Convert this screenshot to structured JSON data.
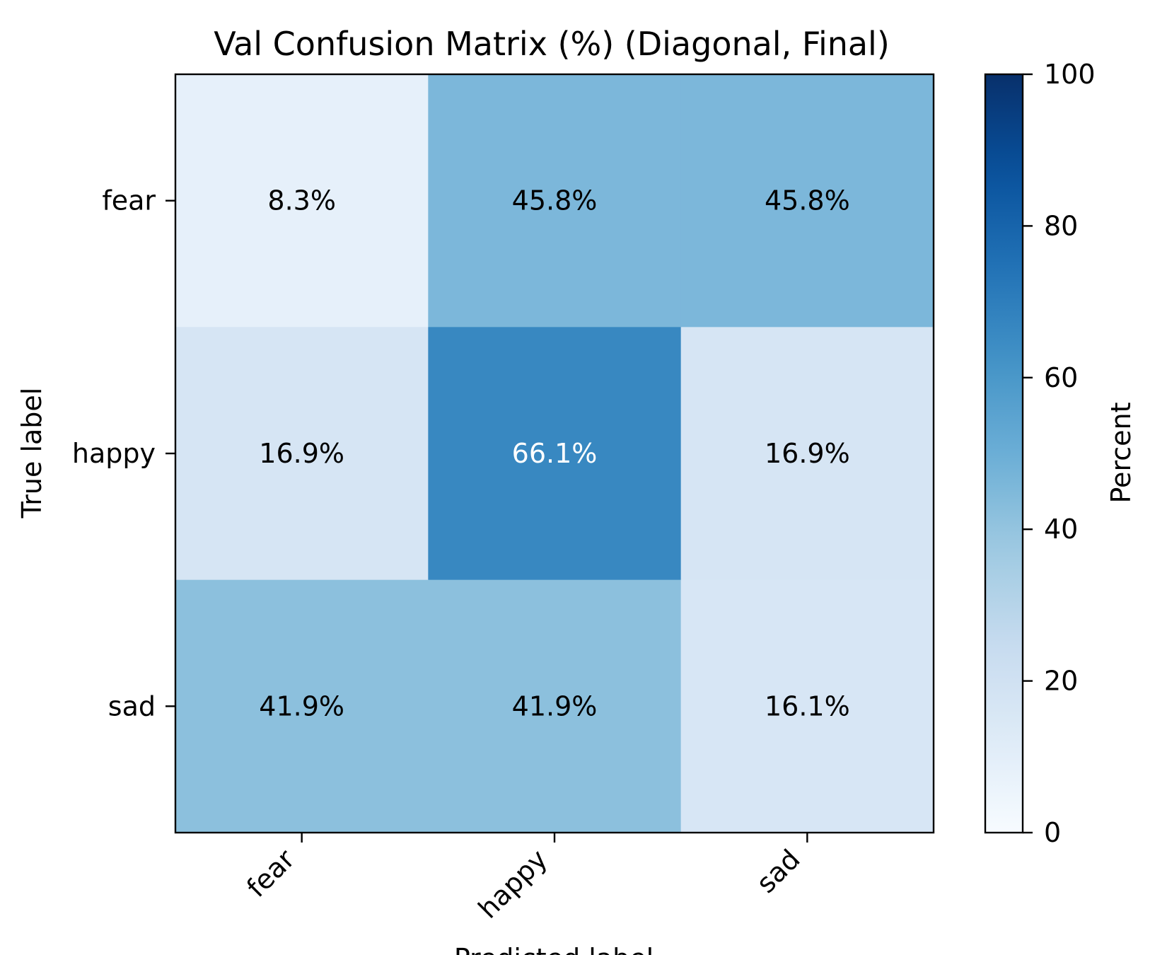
{
  "chart_data": {
    "type": "heatmap",
    "title": "Val Confusion Matrix (%) (Diagonal, Final)",
    "xlabel": "Predicted label",
    "ylabel": "True label",
    "x_categories": [
      "fear",
      "happy",
      "sad"
    ],
    "y_categories": [
      "fear",
      "happy",
      "sad"
    ],
    "values": [
      [
        8.3,
        45.8,
        45.8
      ],
      [
        16.9,
        66.1,
        16.9
      ],
      [
        41.9,
        41.9,
        16.1
      ]
    ],
    "cell_labels": [
      [
        "8.3%",
        "45.8%",
        "45.8%"
      ],
      [
        "16.9%",
        "66.1%",
        "16.9%"
      ],
      [
        "41.9%",
        "41.9%",
        "16.1%"
      ]
    ],
    "colorbar": {
      "label": "Percent",
      "range": [
        0,
        100
      ],
      "ticks": [
        0,
        20,
        40,
        60,
        80,
        100
      ],
      "colormap": "Blues"
    }
  }
}
